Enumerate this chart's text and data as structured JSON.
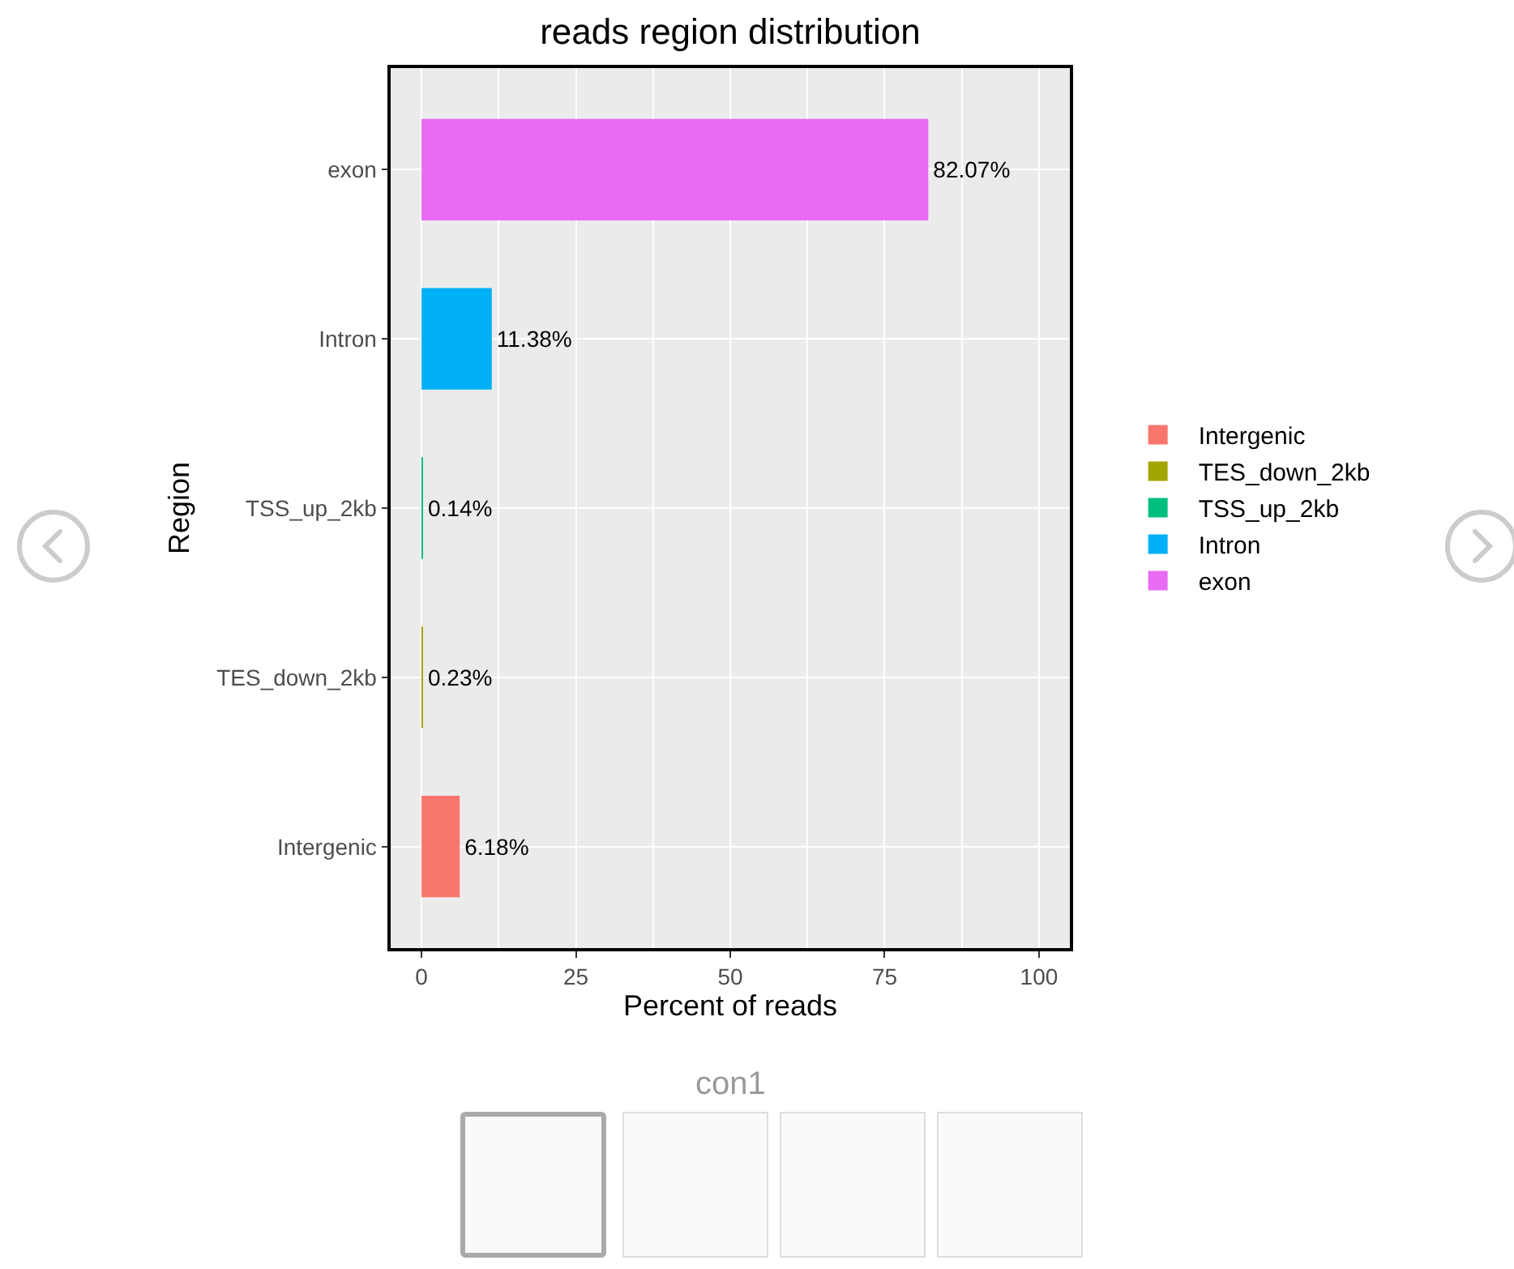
{
  "chart_data": {
    "type": "bar",
    "orientation": "horizontal",
    "title": "reads region distribution",
    "xlabel": "Percent of reads",
    "ylabel": "Region",
    "categories": [
      "exon",
      "Intron",
      "TSS_up_2kb",
      "TES_down_2kb",
      "Intergenic"
    ],
    "series": [
      {
        "name": "Intergenic",
        "color": "#f8766d",
        "values": [
          null,
          null,
          null,
          null,
          6.18
        ],
        "value_labels": [
          null,
          null,
          null,
          null,
          "6.18%"
        ]
      },
      {
        "name": "TES_down_2kb",
        "color": "#a3a500",
        "values": [
          null,
          null,
          null,
          0.23,
          null
        ],
        "value_labels": [
          null,
          null,
          null,
          "0.23%",
          null
        ]
      },
      {
        "name": "TSS_up_2kb",
        "color": "#00bf7d",
        "values": [
          null,
          null,
          0.14,
          null,
          null
        ],
        "value_labels": [
          null,
          null,
          "0.14%",
          null,
          null
        ]
      },
      {
        "name": "Intron",
        "color": "#00b0f6",
        "values": [
          null,
          11.38,
          null,
          null,
          null
        ],
        "value_labels": [
          null,
          "11.38%",
          null,
          null,
          null
        ]
      },
      {
        "name": "exon",
        "color": "#e76bf3",
        "values": [
          82.07,
          null,
          null,
          null,
          null
        ],
        "value_labels": [
          "82.07%",
          null,
          null,
          null,
          null
        ]
      }
    ],
    "xlim": [
      -5,
      105
    ],
    "xticks": [
      0,
      25,
      50,
      75,
      100
    ],
    "grid": true,
    "legend": "right",
    "annotations": [
      "con1"
    ]
  }
}
